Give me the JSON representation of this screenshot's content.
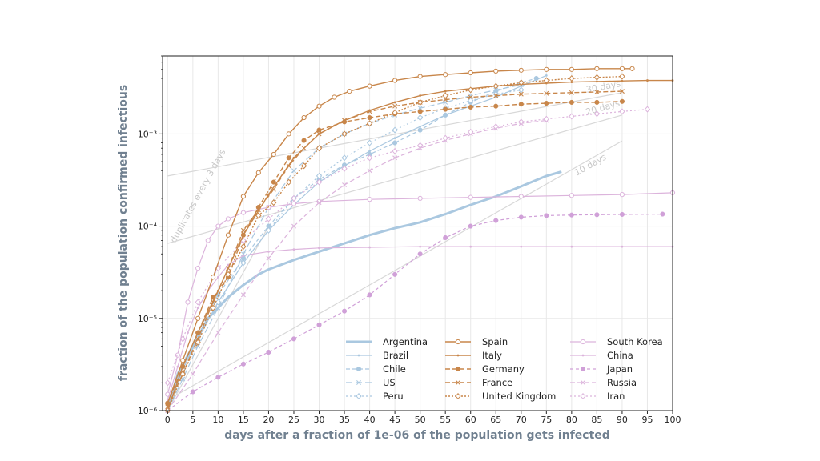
{
  "chart_data": {
    "type": "line",
    "xlabel": "days after a fraction of 1e-06 of the population gets infected",
    "ylabel": "fraction of the population confirmed infectious",
    "xlim": [
      -1,
      100
    ],
    "ylim": [
      1e-06,
      0.007
    ],
    "yscale": "log",
    "x_ticks": [
      "0",
      "5",
      "10",
      "15",
      "20",
      "25",
      "30",
      "35",
      "40",
      "45",
      "50",
      "55",
      "60",
      "65",
      "70",
      "75",
      "80",
      "85",
      "90",
      "95",
      "100"
    ],
    "y_ticks": [
      {
        "value": 1e-06,
        "label": "10⁻⁶"
      },
      {
        "value": 1e-05,
        "label": "10⁻⁵"
      },
      {
        "value": 0.0001,
        "label": "10⁻⁴"
      },
      {
        "value": 0.001,
        "label": "10⁻³"
      }
    ],
    "grid": true,
    "legend_position": "lower-right",
    "reference_lines": [
      {
        "label": "duplicates every 3 days",
        "doubling_days": 3,
        "x": [
          0,
          20
        ],
        "y": [
          1e-06,
          0.0001
        ]
      },
      {
        "label": "10 days",
        "doubling_days": 10,
        "x": [
          0,
          90
        ],
        "y": [
          1.3e-06,
          0.00084
        ]
      },
      {
        "label": "20 days",
        "doubling_days": 20,
        "x": [
          0,
          90
        ],
        "y": [
          6.5e-05,
          0.0016
        ]
      },
      {
        "label": "30 days",
        "doubling_days": 30,
        "x": [
          0,
          90
        ],
        "y": [
          0.00035,
          0.0028
        ]
      }
    ],
    "series": [
      {
        "name": "Argentina",
        "color": "#aac8e0",
        "dash": "",
        "marker": "none",
        "width": 3,
        "x": [
          0,
          2,
          5,
          8,
          10,
          12,
          15,
          18,
          20,
          25,
          30,
          35,
          40,
          45,
          50,
          55,
          60,
          65,
          70,
          75,
          78
        ],
        "y": [
          1e-06,
          2.5e-06,
          5e-06,
          1e-05,
          1.3e-05,
          1.7e-05,
          2.3e-05,
          3e-05,
          3.4e-05,
          4.3e-05,
          5.3e-05,
          6.5e-05,
          8e-05,
          9.5e-05,
          0.00011,
          0.000135,
          0.00017,
          0.00021,
          0.00027,
          0.00035,
          0.00039
        ]
      },
      {
        "name": "Brazil",
        "color": "#aac8e0",
        "dash": "",
        "marker": "dot",
        "width": 1.2,
        "x": [
          0,
          3,
          6,
          10,
          15,
          20,
          25,
          30,
          35,
          40,
          45,
          50,
          55,
          60,
          65,
          70,
          75
        ],
        "y": [
          1e-06,
          2.8e-06,
          6e-06,
          1.5e-05,
          4e-05,
          9e-05,
          0.00017,
          0.0003,
          0.00045,
          0.00065,
          0.0009,
          0.0012,
          0.0016,
          0.002,
          0.0025,
          0.0033,
          0.0043
        ]
      },
      {
        "name": "Chile",
        "color": "#aac8e0",
        "dash": "5,3",
        "marker": "circle-filled",
        "width": 1.2,
        "x": [
          0,
          3,
          6,
          10,
          15,
          20,
          25,
          30,
          35,
          40,
          45,
          50,
          55,
          60,
          65,
          70,
          73
        ],
        "y": [
          1.2e-06,
          3e-06,
          7e-06,
          1.8e-05,
          4.5e-05,
          0.0001,
          0.0002,
          0.00032,
          0.00046,
          0.0006,
          0.0008,
          0.0011,
          0.0016,
          0.0022,
          0.0029,
          0.0036,
          0.004
        ]
      },
      {
        "name": "US",
        "color": "#aac8e0",
        "dash": "8,4",
        "marker": "x",
        "width": 1.2,
        "x": [
          0,
          3,
          6,
          10,
          15,
          20,
          25,
          30,
          35,
          40,
          45,
          50,
          55,
          60,
          65,
          70
        ],
        "y": [
          1e-06,
          2.2e-06,
          5e-06,
          1.3e-05,
          5e-05,
          0.00016,
          0.0004,
          0.0007,
          0.001,
          0.0013,
          0.0016,
          0.0019,
          0.0022,
          0.0026,
          0.003,
          0.0034
        ]
      },
      {
        "name": "Peru",
        "color": "#aac8e0",
        "dash": "2,3",
        "marker": "diamond-open",
        "width": 1.2,
        "x": [
          0,
          3,
          6,
          10,
          15,
          20,
          25,
          30,
          35,
          40,
          45,
          50,
          55,
          60,
          65,
          70
        ],
        "y": [
          1e-06,
          2.8e-06,
          6e-06,
          1.5e-05,
          4e-05,
          9e-05,
          0.0002,
          0.00035,
          0.00055,
          0.0008,
          0.0011,
          0.0015,
          0.0019,
          0.0023,
          0.0027,
          0.003
        ]
      },
      {
        "name": "Spain",
        "color": "#c8864a",
        "dash": "",
        "marker": "circle-open",
        "width": 1.4,
        "x": [
          0,
          3,
          6,
          9,
          12,
          15,
          18,
          21,
          24,
          27,
          30,
          33,
          36,
          40,
          45,
          50,
          55,
          60,
          65,
          70,
          75,
          80,
          85,
          90,
          92
        ],
        "y": [
          1.2e-06,
          3.5e-06,
          1e-05,
          2.8e-05,
          8e-05,
          0.00021,
          0.00038,
          0.0006,
          0.001,
          0.0015,
          0.002,
          0.0025,
          0.0029,
          0.0033,
          0.0038,
          0.0042,
          0.0044,
          0.0046,
          0.0048,
          0.0049,
          0.005,
          0.005,
          0.0051,
          0.0051,
          0.0051
        ]
      },
      {
        "name": "Italy",
        "color": "#c8864a",
        "dash": "",
        "marker": "dot",
        "width": 1.4,
        "x": [
          0,
          3,
          6,
          10,
          15,
          20,
          25,
          30,
          35,
          40,
          45,
          50,
          55,
          60,
          65,
          70,
          75,
          80,
          85,
          90,
          95,
          100
        ],
        "y": [
          1e-06,
          3e-06,
          7e-06,
          2e-05,
          8e-05,
          0.00022,
          0.00055,
          0.001,
          0.0014,
          0.0018,
          0.0022,
          0.0026,
          0.0029,
          0.0031,
          0.0033,
          0.00345,
          0.00355,
          0.00365,
          0.0037,
          0.00375,
          0.0038,
          0.0038
        ]
      },
      {
        "name": "Germany",
        "color": "#c8864a",
        "dash": "6,3",
        "marker": "circle-filled",
        "width": 1.4,
        "x": [
          0,
          3,
          6,
          9,
          12,
          15,
          18,
          21,
          24,
          27,
          30,
          35,
          40,
          45,
          50,
          55,
          60,
          65,
          70,
          75,
          80,
          85,
          90
        ],
        "y": [
          1.2e-06,
          3e-06,
          7e-06,
          1.7e-05,
          2.8e-05,
          8e-05,
          0.00016,
          0.0003,
          0.00055,
          0.00085,
          0.0011,
          0.00135,
          0.0015,
          0.00165,
          0.00175,
          0.00185,
          0.00195,
          0.002,
          0.0021,
          0.00215,
          0.0022,
          0.0022,
          0.00225
        ]
      },
      {
        "name": "France",
        "color": "#c8864a",
        "dash": "6,3",
        "marker": "x",
        "width": 1.4,
        "x": [
          0,
          3,
          6,
          9,
          12,
          15,
          18,
          21,
          24,
          27,
          30,
          35,
          40,
          45,
          50,
          55,
          60,
          65,
          70,
          75,
          80,
          85,
          90
        ],
        "y": [
          1.1e-06,
          2.5e-06,
          6e-06,
          1.5e-05,
          3.5e-05,
          9e-05,
          0.00015,
          0.00025,
          0.00045,
          0.0007,
          0.001,
          0.0014,
          0.00175,
          0.002,
          0.0022,
          0.00235,
          0.0025,
          0.0026,
          0.0027,
          0.00275,
          0.0028,
          0.00285,
          0.0029
        ]
      },
      {
        "name": "United Kingdom",
        "color": "#c8864a",
        "dash": "2,2",
        "marker": "diamond-open",
        "width": 1.4,
        "x": [
          0,
          3,
          6,
          9,
          12,
          15,
          18,
          21,
          24,
          27,
          30,
          35,
          40,
          45,
          50,
          55,
          60,
          65,
          70,
          75,
          80,
          85,
          90
        ],
        "y": [
          1e-06,
          2.5e-06,
          5.5e-06,
          1.3e-05,
          3e-05,
          6e-05,
          0.00013,
          0.00018,
          0.0003,
          0.00045,
          0.0007,
          0.001,
          0.0013,
          0.0017,
          0.0022,
          0.0026,
          0.003,
          0.0033,
          0.0036,
          0.0038,
          0.004,
          0.0041,
          0.0042
        ]
      },
      {
        "name": "South Korea",
        "color": "#dcb4dc",
        "dash": "",
        "marker": "circle-open",
        "width": 1.2,
        "x": [
          0,
          2,
          4,
          6,
          8,
          10,
          12,
          15,
          20,
          25,
          30,
          40,
          50,
          60,
          70,
          80,
          90,
          100
        ],
        "y": [
          1.5e-06,
          4e-06,
          1.5e-05,
          3.5e-05,
          7e-05,
          0.0001,
          0.00012,
          0.00014,
          0.00016,
          0.000175,
          0.000185,
          0.000195,
          0.0002,
          0.000205,
          0.00021,
          0.000215,
          0.00022,
          0.00023
        ]
      },
      {
        "name": "China",
        "color": "#dcb4dc",
        "dash": "",
        "marker": "dot",
        "width": 1.2,
        "x": [
          0,
          2,
          4,
          6,
          8,
          10,
          12,
          15,
          20,
          25,
          30,
          40,
          50,
          60,
          70,
          80,
          90,
          100
        ],
        "y": [
          1.3e-06,
          3e-06,
          7e-06,
          1.3e-05,
          2e-05,
          2.8e-05,
          3.8e-05,
          4.8e-05,
          5.3e-05,
          5.6e-05,
          5.8e-05,
          5.9e-05,
          6e-05,
          6e-05,
          6e-05,
          6e-05,
          6e-05,
          6e-05
        ]
      },
      {
        "name": "Japan",
        "color": "#d0a0d8",
        "dash": "4,3",
        "marker": "circle-filled",
        "width": 1.2,
        "x": [
          0,
          5,
          10,
          15,
          20,
          25,
          30,
          35,
          40,
          45,
          50,
          55,
          60,
          65,
          70,
          75,
          80,
          85,
          90,
          98
        ],
        "y": [
          1e-06,
          1.6e-06,
          2.3e-06,
          3.2e-06,
          4.3e-06,
          6e-06,
          8.5e-06,
          1.2e-05,
          1.8e-05,
          3e-05,
          5e-05,
          7.5e-05,
          0.0001,
          0.000115,
          0.000125,
          0.00013,
          0.000132,
          0.000133,
          0.000134,
          0.000135
        ]
      },
      {
        "name": "Russia",
        "color": "#dcb4dc",
        "dash": "6,3",
        "marker": "x",
        "width": 1.2,
        "x": [
          0,
          5,
          10,
          15,
          20,
          25,
          30,
          35,
          40,
          45,
          50,
          55,
          60,
          65,
          70,
          75
        ],
        "y": [
          1e-06,
          2.5e-06,
          7e-06,
          1.8e-05,
          4.5e-05,
          0.0001,
          0.00018,
          0.00028,
          0.0004,
          0.00055,
          0.0007,
          0.00085,
          0.001,
          0.00115,
          0.0013,
          0.0014
        ]
      },
      {
        "name": "Iran",
        "color": "#dcb4dc",
        "dash": "2,3",
        "marker": "diamond-open",
        "width": 1.2,
        "x": [
          0,
          3,
          6,
          10,
          15,
          20,
          25,
          30,
          35,
          40,
          45,
          50,
          55,
          60,
          65,
          70,
          75,
          80,
          85,
          90,
          95
        ],
        "y": [
          2e-06,
          6e-06,
          1.5e-05,
          3.5e-05,
          7e-05,
          0.00012,
          0.0002,
          0.0003,
          0.00042,
          0.00055,
          0.00065,
          0.00075,
          0.0009,
          0.00105,
          0.0012,
          0.00135,
          0.00145,
          0.00155,
          0.00165,
          0.00175,
          0.00185
        ]
      }
    ],
    "legend_columns": [
      [
        "Argentina",
        "Brazil",
        "Chile",
        "US",
        "Peru"
      ],
      [
        "Spain",
        "Italy",
        "Germany",
        "France",
        "United Kingdom"
      ],
      [
        "South Korea",
        "China",
        "Japan",
        "Russia",
        "Iran"
      ]
    ]
  }
}
